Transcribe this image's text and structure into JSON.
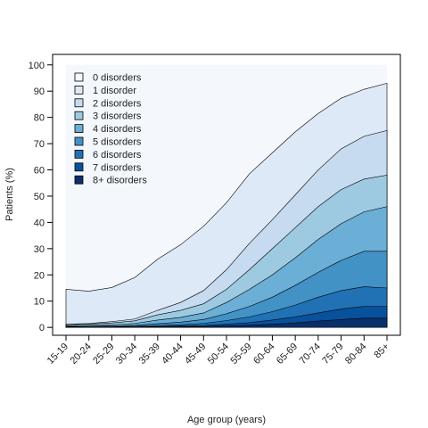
{
  "chart_data": {
    "type": "area",
    "stacked": true,
    "xlabel": "Age group (years)",
    "ylabel": "Patients (%)",
    "ylim": [
      -3,
      104
    ],
    "y_ticks": [
      0,
      10,
      20,
      30,
      40,
      50,
      60,
      70,
      80,
      90,
      100
    ],
    "categories": [
      "15-19",
      "20-24",
      "25-29",
      "30-34",
      "35-39",
      "40-44",
      "45-49",
      "50-54",
      "55-59",
      "60-64",
      "65-69",
      "70-74",
      "75-79",
      "80-84",
      "85+"
    ],
    "legend_position": "top-left",
    "series": [
      {
        "name": "0 disorders",
        "color": "#f4f8fd",
        "cumulative": [
          100,
          100,
          100,
          100,
          100,
          100,
          100,
          100,
          100,
          100,
          100,
          100,
          100,
          100,
          100
        ]
      },
      {
        "name": "1 disorder",
        "color": "#dde9f6",
        "cumulative": [
          14.5,
          13.8,
          15.2,
          19,
          26,
          31.5,
          38.5,
          47.5,
          58.5,
          66.5,
          74.5,
          81.5,
          87.3,
          90.7,
          93
        ]
      },
      {
        "name": "2 disorders",
        "color": "#c6dbef",
        "cumulative": [
          1.2,
          1.5,
          2.2,
          3.2,
          6.5,
          9.5,
          14,
          22,
          32,
          41,
          50.5,
          60,
          68,
          72.8,
          75
        ]
      },
      {
        "name": "3 disorders",
        "color": "#9ecae1",
        "cumulative": [
          1,
          1.3,
          1.7,
          2.5,
          4.8,
          6.5,
          9,
          14.5,
          22,
          30,
          38,
          46,
          52.5,
          56.5,
          58
        ]
      },
      {
        "name": "4 disorders",
        "color": "#6baed6",
        "cumulative": [
          0.6,
          0.8,
          1,
          1.5,
          2.8,
          3.8,
          5.5,
          9.5,
          14.5,
          20,
          26.5,
          33.5,
          39.5,
          44,
          46
        ]
      },
      {
        "name": "5 disorders",
        "color": "#4292c6",
        "cumulative": [
          0.3,
          0.4,
          0.5,
          0.8,
          1.4,
          2,
          3,
          5.2,
          8,
          11.5,
          16,
          21,
          25.5,
          29,
          29
        ]
      },
      {
        "name": "6 disorders",
        "color": "#2171b5",
        "cumulative": [
          0.15,
          0.2,
          0.25,
          0.4,
          0.7,
          1,
          1.5,
          2.6,
          4,
          6,
          8.5,
          11.5,
          14,
          15.5,
          15
        ]
      },
      {
        "name": "7 disorders",
        "color": "#08519c",
        "cumulative": [
          0.05,
          0.1,
          0.12,
          0.2,
          0.3,
          0.5,
          0.7,
          1.2,
          1.8,
          2.8,
          4,
          5.5,
          7,
          8,
          8
        ]
      },
      {
        "name": "8+ disorders",
        "color": "#08306b",
        "cumulative": [
          0.02,
          0.05,
          0.06,
          0.1,
          0.15,
          0.2,
          0.3,
          0.5,
          0.8,
          1.2,
          1.7,
          2.4,
          3,
          3.5,
          3.5
        ]
      }
    ]
  }
}
